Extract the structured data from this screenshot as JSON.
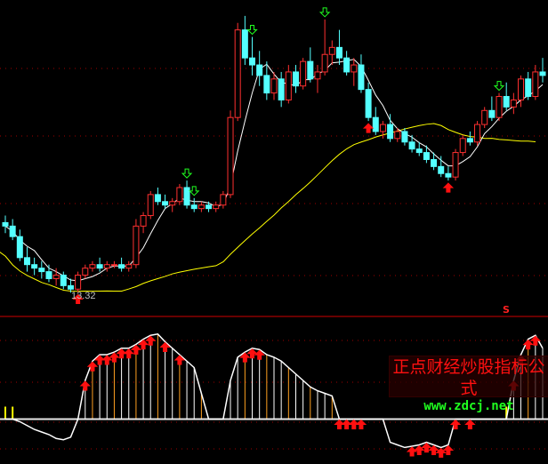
{
  "chart_data": [
    {
      "type": "candlestick",
      "title": "",
      "ylim": [
        12.9,
        21.4
      ],
      "grid": "dotted horizontal",
      "up_color": "#ff3030",
      "down_color": "#54ffff",
      "ma_colors": {
        "short": "#ffffff",
        "long": "#ffff00"
      },
      "low_label": "13.32",
      "candles": [
        [
          15.3,
          15.5,
          15.0,
          15.2
        ],
        [
          15.2,
          15.4,
          14.8,
          14.9
        ],
        [
          14.9,
          15.1,
          14.2,
          14.3
        ],
        [
          14.3,
          14.6,
          13.9,
          14.1
        ],
        [
          14.1,
          14.3,
          13.8,
          14.0
        ],
        [
          14.0,
          14.2,
          13.7,
          13.9
        ],
        [
          13.9,
          14.1,
          13.6,
          13.7
        ],
        [
          13.7,
          14.0,
          13.5,
          13.8
        ],
        [
          13.8,
          13.9,
          13.4,
          13.5
        ],
        [
          13.5,
          13.7,
          13.3,
          13.4
        ],
        [
          13.4,
          13.9,
          13.32,
          13.8
        ],
        [
          13.8,
          14.1,
          13.7,
          14.0
        ],
        [
          14.0,
          14.2,
          13.9,
          14.1
        ],
        [
          14.1,
          14.3,
          13.9,
          14.0
        ],
        [
          14.0,
          14.2,
          13.9,
          14.1
        ],
        [
          14.1,
          14.2,
          14.0,
          14.1
        ],
        [
          14.1,
          14.3,
          13.9,
          14.0
        ],
        [
          14.0,
          14.2,
          13.9,
          14.1
        ],
        [
          14.1,
          15.4,
          14.0,
          15.2
        ],
        [
          15.2,
          15.6,
          15.0,
          15.5
        ],
        [
          15.5,
          16.2,
          15.4,
          16.1
        ],
        [
          16.1,
          16.3,
          15.8,
          15.9
        ],
        [
          15.9,
          16.1,
          15.7,
          15.8
        ],
        [
          15.8,
          16.0,
          15.6,
          15.9
        ],
        [
          15.9,
          16.4,
          15.8,
          16.3
        ],
        [
          16.3,
          16.5,
          15.7,
          15.8
        ],
        [
          15.8,
          16.0,
          15.6,
          15.7
        ],
        [
          15.7,
          15.9,
          15.6,
          15.8
        ],
        [
          15.8,
          15.9,
          15.6,
          15.7
        ],
        [
          15.7,
          15.9,
          15.6,
          15.8
        ],
        [
          15.8,
          16.2,
          15.7,
          16.1
        ],
        [
          16.1,
          18.5,
          16.0,
          18.3
        ],
        [
          18.3,
          21.0,
          18.2,
          20.8
        ],
        [
          20.8,
          21.2,
          19.8,
          20.0
        ],
        [
          20.0,
          20.6,
          19.5,
          19.8
        ],
        [
          19.8,
          20.2,
          19.2,
          19.5
        ],
        [
          19.5,
          19.9,
          18.8,
          19.0
        ],
        [
          19.0,
          19.6,
          18.8,
          19.4
        ],
        [
          19.4,
          19.6,
          18.6,
          18.8
        ],
        [
          18.8,
          19.8,
          18.7,
          19.6
        ],
        [
          19.6,
          19.8,
          19.0,
          19.2
        ],
        [
          19.2,
          20.0,
          19.1,
          19.9
        ],
        [
          19.9,
          20.3,
          19.3,
          19.4
        ],
        [
          19.4,
          19.8,
          19.0,
          19.6
        ],
        [
          19.6,
          21.1,
          19.5,
          20.1
        ],
        [
          20.1,
          20.5,
          19.8,
          20.3
        ],
        [
          20.3,
          20.8,
          19.8,
          20.0
        ],
        [
          20.0,
          20.2,
          19.5,
          19.6
        ],
        [
          19.6,
          20.0,
          19.2,
          19.8
        ],
        [
          19.8,
          20.1,
          19.0,
          19.1
        ],
        [
          19.1,
          19.3,
          18.2,
          18.3
        ],
        [
          18.3,
          18.6,
          17.8,
          17.9
        ],
        [
          17.9,
          18.2,
          17.7,
          18.1
        ],
        [
          18.1,
          18.4,
          17.6,
          17.7
        ],
        [
          17.7,
          18.0,
          17.6,
          17.9
        ],
        [
          17.9,
          18.0,
          17.5,
          17.6
        ],
        [
          17.6,
          17.8,
          17.3,
          17.4
        ],
        [
          17.4,
          17.6,
          17.2,
          17.3
        ],
        [
          17.3,
          17.5,
          17.0,
          17.1
        ],
        [
          17.1,
          17.3,
          16.8,
          16.9
        ],
        [
          16.9,
          17.2,
          16.6,
          16.7
        ],
        [
          16.7,
          16.9,
          16.5,
          16.6
        ],
        [
          16.6,
          17.4,
          16.5,
          17.3
        ],
        [
          17.3,
          17.8,
          17.2,
          17.7
        ],
        [
          17.7,
          17.9,
          17.5,
          17.6
        ],
        [
          17.6,
          18.2,
          17.5,
          18.1
        ],
        [
          18.1,
          18.6,
          18.0,
          18.5
        ],
        [
          18.5,
          18.9,
          18.2,
          18.3
        ],
        [
          18.3,
          19.0,
          18.2,
          18.9
        ],
        [
          18.9,
          19.3,
          18.5,
          18.6
        ],
        [
          18.6,
          19.0,
          18.4,
          18.8
        ],
        [
          18.8,
          19.5,
          18.6,
          19.4
        ],
        [
          19.4,
          19.6,
          18.8,
          18.9
        ],
        [
          18.9,
          19.8,
          18.8,
          19.6
        ],
        [
          19.6,
          20.0,
          19.3,
          19.5
        ]
      ],
      "buy_arrows": [
        10,
        61,
        50
      ],
      "sell_arrows": [
        25,
        26,
        34,
        44,
        68
      ]
    },
    {
      "type": "line",
      "ylim": [
        0,
        100
      ],
      "baseline": 30,
      "line_color": "#ffffff",
      "values": [
        30,
        30,
        28,
        25,
        22,
        20,
        18,
        15,
        14,
        16,
        30,
        60,
        75,
        80,
        80,
        82,
        85,
        85,
        88,
        92,
        95,
        96,
        90,
        85,
        80,
        75,
        70,
        50,
        30,
        30,
        30,
        60,
        78,
        82,
        85,
        84,
        80,
        78,
        75,
        70,
        65,
        60,
        55,
        52,
        50,
        48,
        30,
        30,
        30,
        30,
        30,
        30,
        30,
        12,
        10,
        8,
        9,
        10,
        12,
        10,
        8,
        10,
        30,
        30,
        30,
        30,
        30,
        30,
        30,
        30,
        60,
        80,
        92,
        95,
        85
      ],
      "up_arrow_indices": [
        11,
        12,
        13,
        14,
        15,
        16,
        17,
        18,
        19,
        20,
        22,
        24,
        33,
        34,
        35,
        46,
        47,
        48,
        49,
        56,
        57,
        58,
        59,
        60,
        61,
        62,
        64,
        70,
        71,
        72,
        73
      ],
      "colors": {
        "bar": "#ffa020",
        "yellow_bar": "#ffff00",
        "arrow": "#ff1010",
        "green_marker": "#20ff20"
      }
    }
  ],
  "watermark": {
    "cn": "正点财经炒股指标公式",
    "url": "www.zdcj.net"
  },
  "signal_mark": "S"
}
